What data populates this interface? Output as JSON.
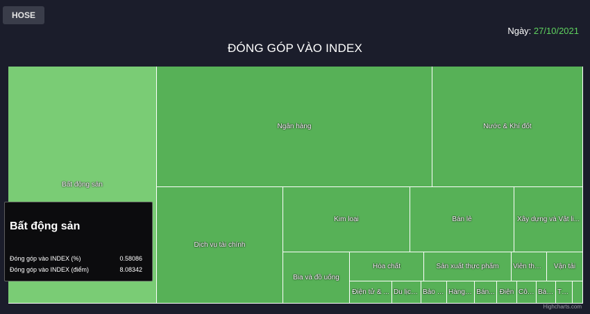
{
  "tab": {
    "label": "HOSE"
  },
  "date": {
    "label": "Ngày:",
    "value": "27/10/2021"
  },
  "chart_title": "ĐÓNG GÓP VÀO INDEX",
  "credit": "Highcharts.com",
  "colors": {
    "background": "#1b1d2b",
    "highlight_tile": "#7acc75",
    "tile": "#57b157",
    "date_value": "#5fd35f"
  },
  "tooltip": {
    "title": "Bất động sản",
    "rows": [
      {
        "label": "Đóng góp vào INDEX (%)",
        "value": "0.58086"
      },
      {
        "label": "Đóng góp vào INDEX (điểm)",
        "value": "8.08342"
      }
    ]
  },
  "chart_data": {
    "type": "treemap",
    "title": "ĐÓNG GÓP VÀO INDEX",
    "value_unit": "relative area share of the treemap",
    "sectors": [
      {
        "label": "Bất động sản",
        "value": 25.7,
        "highlighted": true
      },
      {
        "label": "Ngân hàng",
        "value": 25.0
      },
      {
        "label": "Nước & Khí đốt",
        "value": 13.1
      },
      {
        "label": "Dịch vụ tài chính",
        "value": 11.4
      },
      {
        "label": "Kim loại",
        "value": 6.0
      },
      {
        "label": "Bán lẻ",
        "value": 4.6
      },
      {
        "label": "Xây dựng và Vật li...",
        "value": 3.2
      },
      {
        "label": "Bia và đồ uống",
        "value": 2.6
      },
      {
        "label": "Hóa chất",
        "value": 1.7
      },
      {
        "label": "Sản xuất thực phẩm",
        "value": 1.8
      },
      {
        "label": "Viễn thôn...",
        "value": 0.8
      },
      {
        "label": "Vận tải",
        "value": 0.7
      },
      {
        "label": "Điện tử & ...",
        "value": 0.6
      },
      {
        "label": "Du lịch...",
        "value": 0.4
      },
      {
        "label": "Bảo h...",
        "value": 0.35
      },
      {
        "label": "Hàng ...",
        "value": 0.4
      },
      {
        "label": "Bán...",
        "value": 0.3
      },
      {
        "label": "Điện",
        "value": 0.25
      },
      {
        "label": "Côn...",
        "value": 0.25
      },
      {
        "label": "Bán...",
        "value": 0.25
      },
      {
        "label": "Th...",
        "value": 0.2
      },
      {
        "label": "",
        "value": 0.15
      }
    ]
  }
}
